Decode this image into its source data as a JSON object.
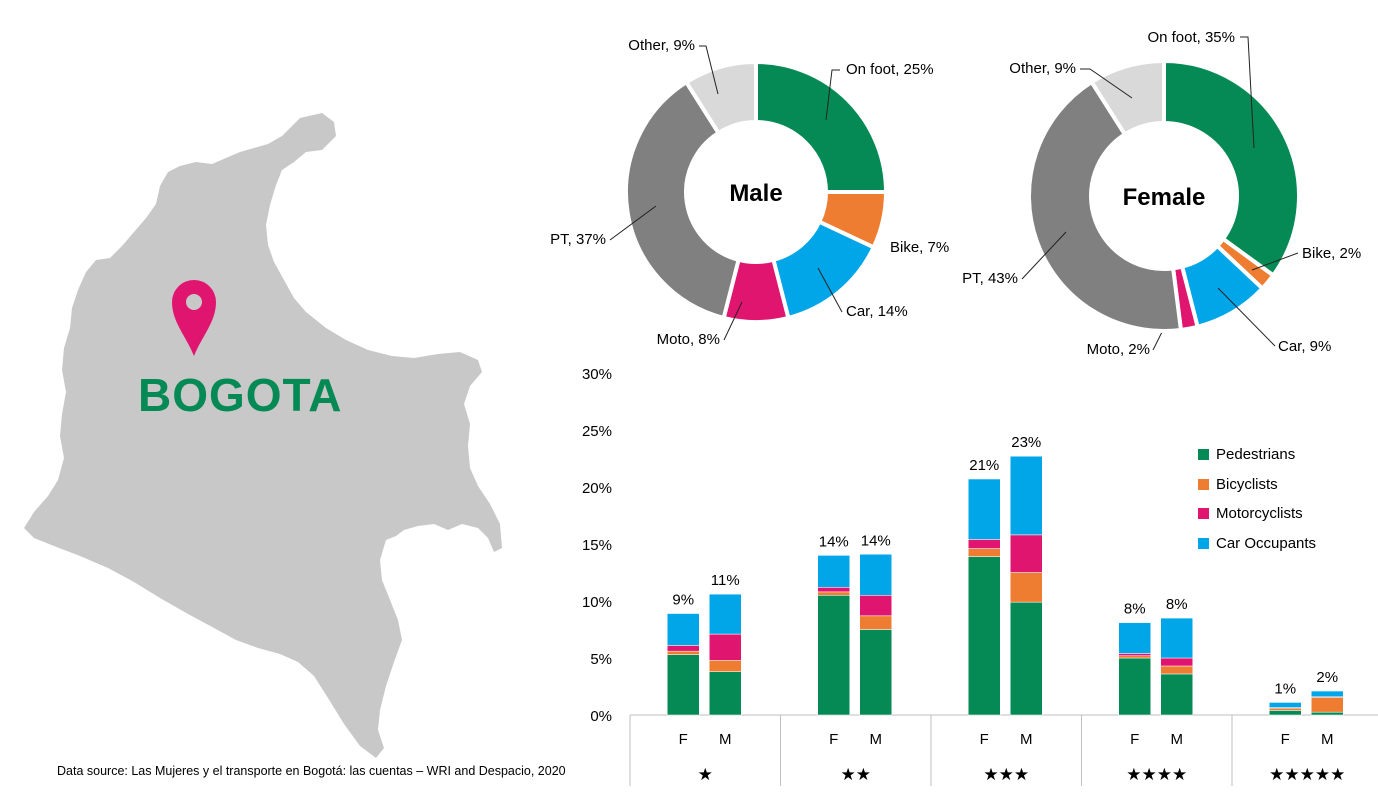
{
  "map": {
    "city_label": "BOGOTA",
    "country_icon": "colombia-silhouette",
    "pin_icon": "location-pin-icon",
    "colors": {
      "land": "#c8c8c8",
      "pin": "#e0156f",
      "city": "#058a55"
    }
  },
  "source_note": "Data source: Las Mujeres y el transporte en Bogotá: las cuentas – WRI and Despacio, 2020",
  "chart_data": [
    {
      "type": "pie",
      "donut": true,
      "center_label": "Male",
      "slices": [
        {
          "label": "On foot, 25%",
          "value": 25,
          "color": "#058a55"
        },
        {
          "label": "Bike, 7%",
          "value": 7,
          "color": "#ee7d31"
        },
        {
          "label": "Car, 14%",
          "value": 14,
          "color": "#00a6e8"
        },
        {
          "label": "Moto, 8%",
          "value": 8,
          "color": "#e0156f"
        },
        {
          "label": "PT, 37%",
          "value": 37,
          "color": "#808080"
        },
        {
          "label": "Other, 9%",
          "value": 9,
          "color": "#d9d9d9"
        }
      ]
    },
    {
      "type": "pie",
      "donut": true,
      "center_label": "Female",
      "slices": [
        {
          "label": "On foot, 35%",
          "value": 35,
          "color": "#058a55"
        },
        {
          "label": "Bike, 2%",
          "value": 2,
          "color": "#ee7d31"
        },
        {
          "label": "Car, 9%",
          "value": 9,
          "color": "#00a6e8"
        },
        {
          "label": "Moto, 2%",
          "value": 2,
          "color": "#e0156f"
        },
        {
          "label": "PT, 43%",
          "value": 43,
          "color": "#808080"
        },
        {
          "label": "Other, 9%",
          "value": 9,
          "color": "#d9d9d9"
        }
      ]
    },
    {
      "type": "bar",
      "stacked": true,
      "groups": [
        "★",
        "★★",
        "★★★",
        "★★★★",
        "★★★★★"
      ],
      "subcategories": [
        "F",
        "M"
      ],
      "ylim": [
        0,
        30
      ],
      "yticks": [
        "0%",
        "5%",
        "10%",
        "15%",
        "20%",
        "25%",
        "30%"
      ],
      "legend_position": "right",
      "series": [
        {
          "name": "Pedestrians",
          "color": "#058a55",
          "values": [
            5.3,
            3.8,
            10.5,
            7.5,
            13.9,
            9.9,
            5.0,
            3.6,
            0.4,
            0.25
          ]
        },
        {
          "name": "Bicyclists",
          "color": "#ee7d31",
          "values": [
            0.3,
            1.0,
            0.3,
            1.2,
            0.7,
            2.6,
            0.2,
            0.7,
            0.2,
            1.3
          ]
        },
        {
          "name": "Motorcyclists",
          "color": "#e0156f",
          "values": [
            0.5,
            2.3,
            0.4,
            1.8,
            0.8,
            3.3,
            0.2,
            0.7,
            0.05,
            0.05
          ]
        },
        {
          "name": "Car Occupants",
          "color": "#00a6e8",
          "values": [
            2.8,
            3.5,
            2.8,
            3.6,
            5.3,
            6.9,
            2.7,
            3.5,
            0.45,
            0.5
          ]
        }
      ],
      "total_labels": [
        "9%",
        "11%",
        "14%",
        "14%",
        "21%",
        "23%",
        "8%",
        "8%",
        "1%",
        "2%"
      ]
    }
  ]
}
